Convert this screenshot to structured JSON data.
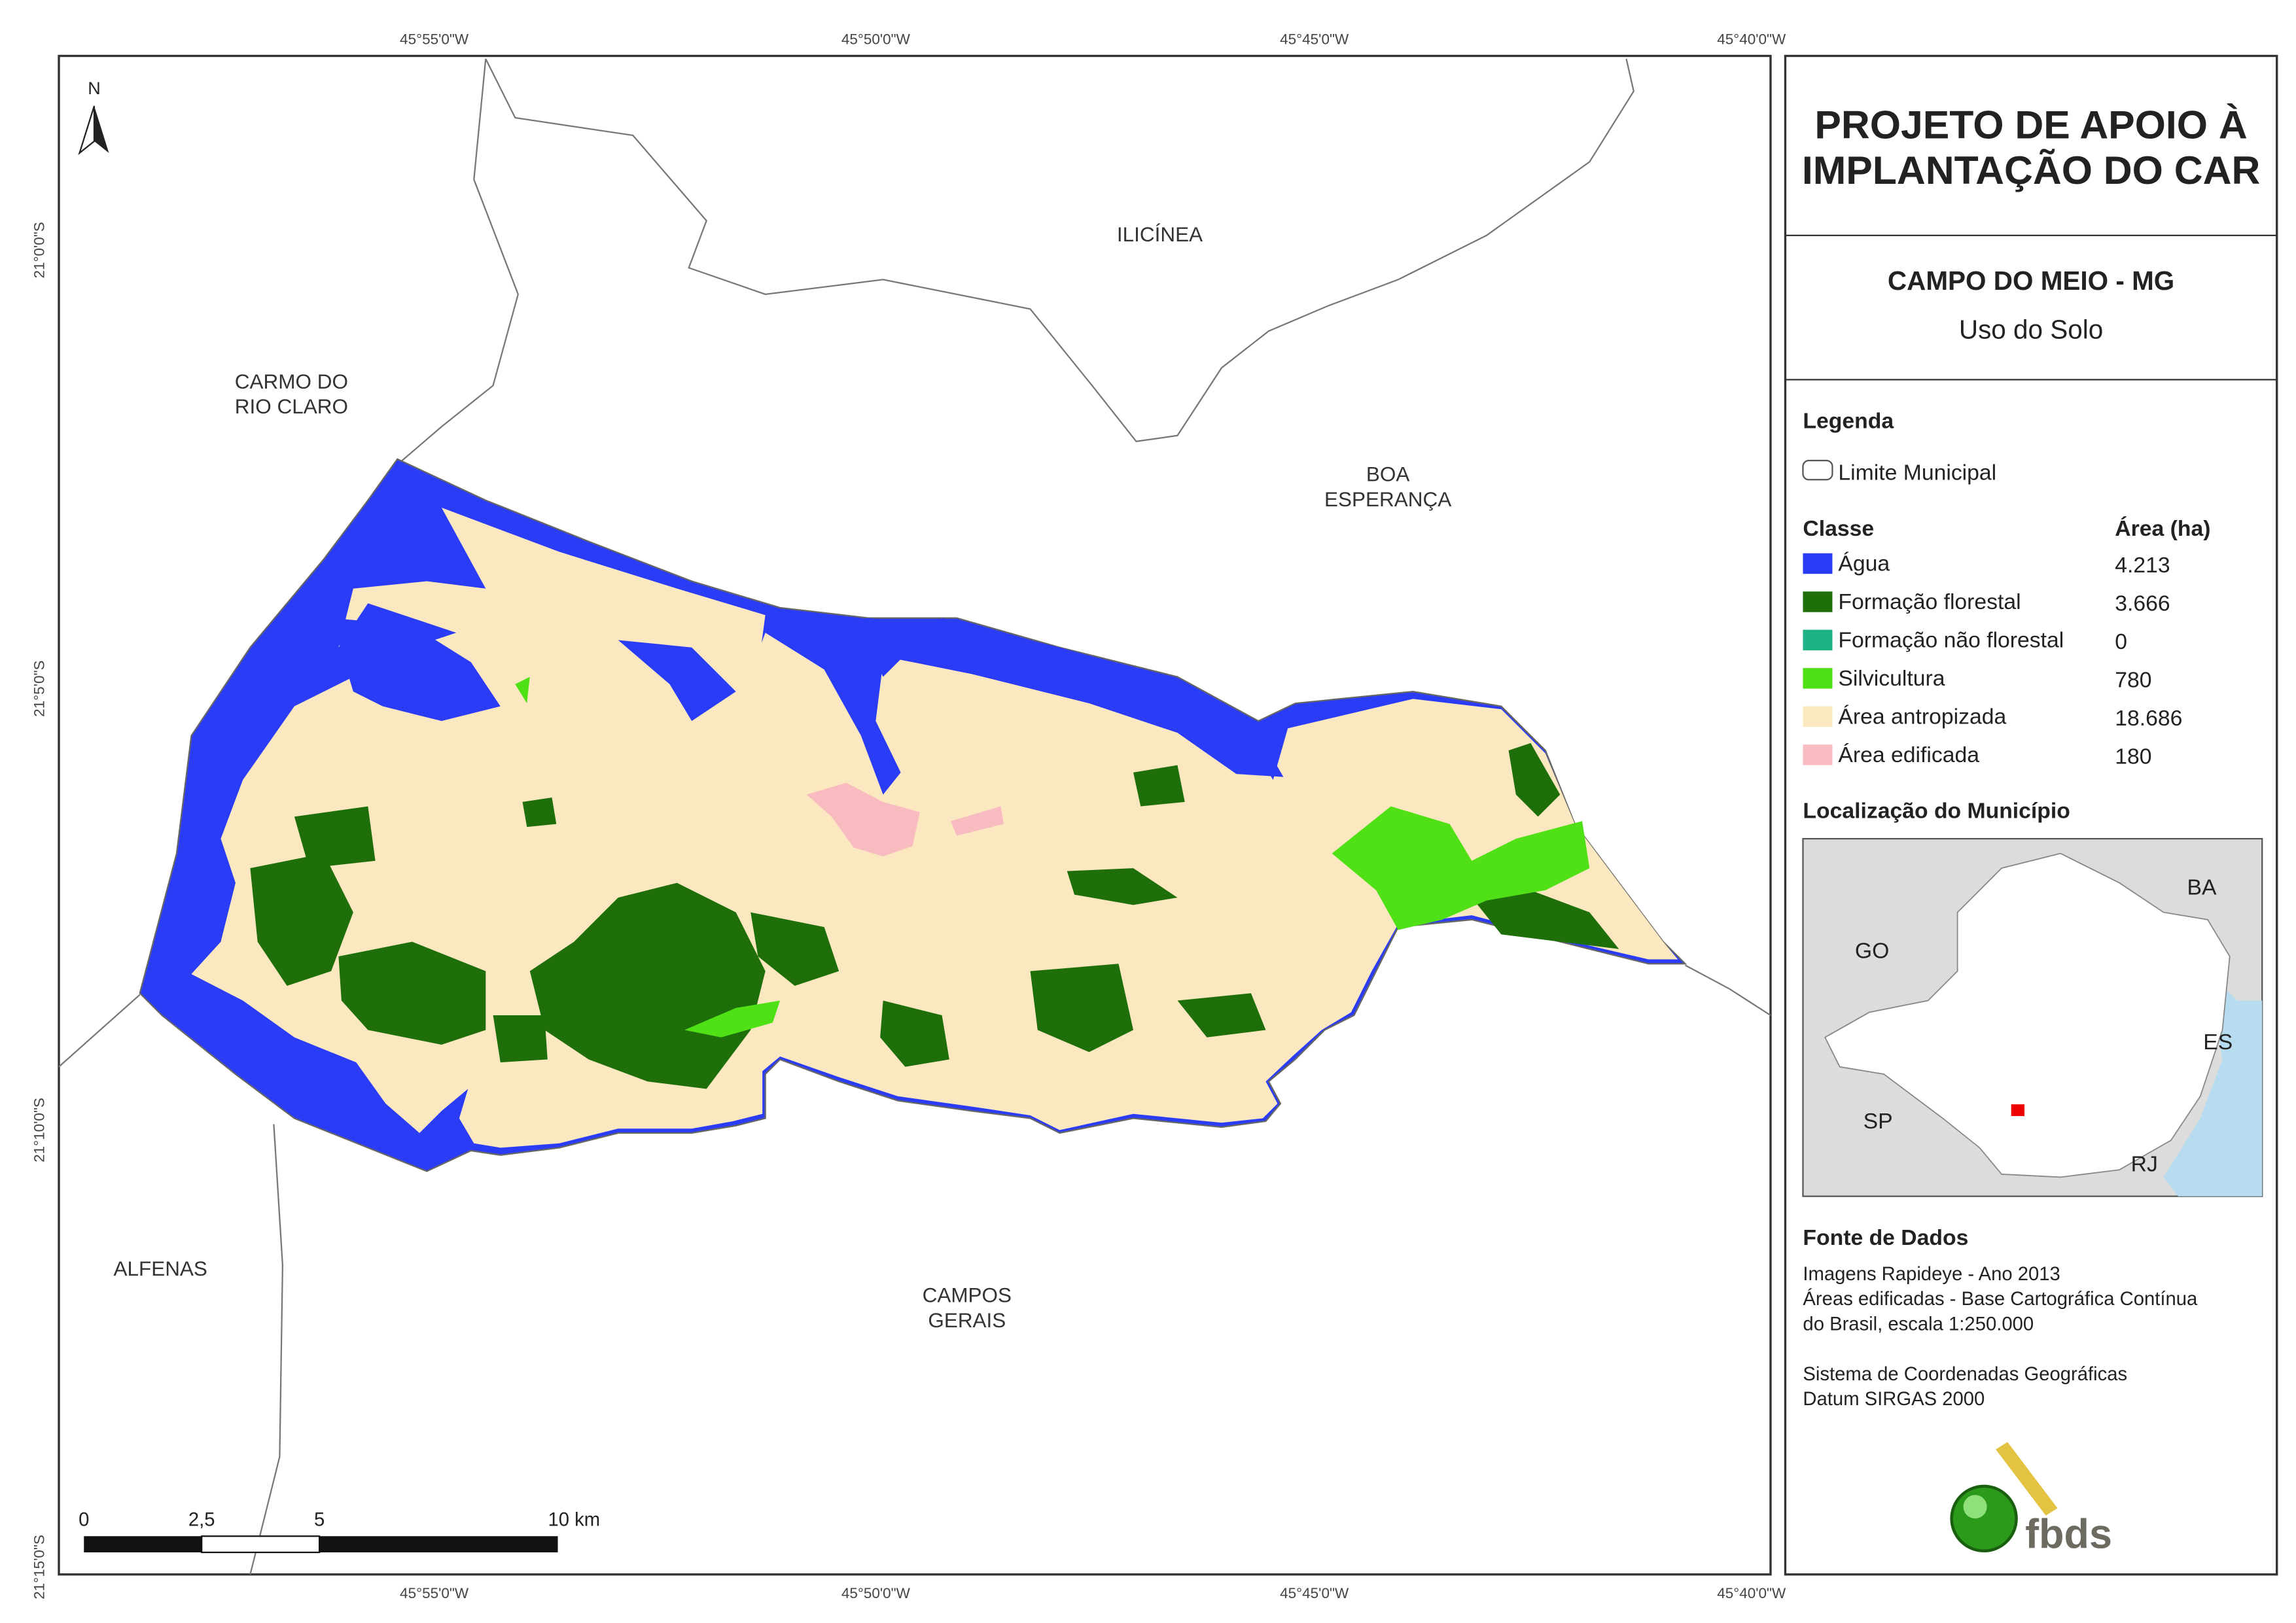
{
  "map": {
    "north": "N",
    "longitudes": [
      "45°55'0\"W",
      "45°50'0\"W",
      "45°45'0\"W",
      "45°40'0\"W"
    ],
    "latitudes": [
      "21°0'0\"S",
      "21°5'0\"S",
      "21°10'0\"S",
      "21°15'0\"S"
    ],
    "places": [
      [
        "ILICÍNEA"
      ],
      [
        "CARMO DO",
        "RIO CLARO"
      ],
      [
        "BOA",
        "ESPERANÇA"
      ],
      [
        "ALFENAS"
      ],
      [
        "CAMPOS",
        "GERAIS"
      ]
    ],
    "scale": [
      "0",
      "2,5",
      "5",
      "10 km"
    ]
  },
  "panel": {
    "title": [
      "PROJETO DE APOIO À",
      "IMPLANTAÇÃO DO CAR"
    ],
    "municipality": "CAMPO DO MEIO - MG",
    "subtitle": "Uso do Solo",
    "legend": {
      "title": "Legenda",
      "boundary": "Limite Municipal",
      "class_header": "Classe",
      "area_header": "Área (ha)",
      "classes": [
        {
          "name": "Água",
          "area": "4.213",
          "color": "#2a3cf6"
        },
        {
          "name": "Formação florestal",
          "area": "3.666",
          "color": "#1e6e0a"
        },
        {
          "name": "Formação não florestal",
          "area": "0",
          "color": "#1db386"
        },
        {
          "name": "Silvicultura",
          "area": "780",
          "color": "#4fe016"
        },
        {
          "name": "Área antropizada",
          "area": "18.686",
          "color": "#fbe7c0"
        },
        {
          "name": "Área edificada",
          "area": "180",
          "color": "#f8bcc0"
        }
      ]
    },
    "location": {
      "title": "Localização do Município",
      "states": [
        "BA",
        "GO",
        "ES",
        "SP",
        "RJ"
      ]
    },
    "sources": {
      "title": "Fonte de Dados",
      "imagery": [
        "Imagens Rapideye - Ano 2013",
        "Áreas edificadas - Base Cartográfica Contínua",
        "do Brasil, escala 1:250.000"
      ],
      "reference": [
        "Sistema de Coordenadas Geográficas",
        "Datum SIRGAS 2000"
      ]
    },
    "logo": "fbds"
  }
}
